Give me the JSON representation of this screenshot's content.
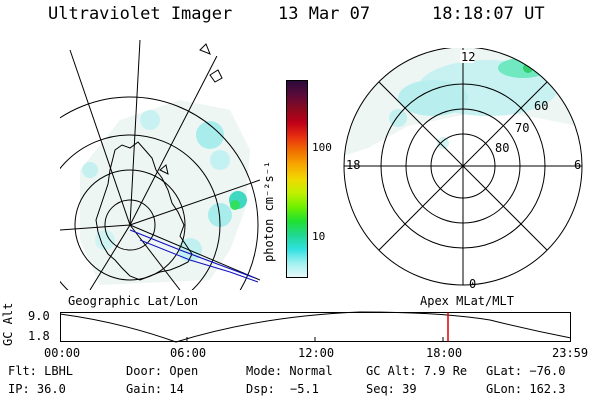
{
  "header": {
    "instrument": "Ultraviolet Imager",
    "date": "13 Mar 07",
    "time": "18:18:07 UT"
  },
  "colorbar": {
    "unit_label": "photon cm⁻²s⁻¹",
    "ticks": [
      "100",
      "10"
    ],
    "colors": [
      "#2a0a3a",
      "#5a0a3a",
      "#8a0a20",
      "#c00018",
      "#e83010",
      "#f07000",
      "#f8a800",
      "#f0d800",
      "#c0f000",
      "#70f000",
      "#20e030",
      "#20d890",
      "#30e0e0",
      "#a0f0f0",
      "#e8f8f8"
    ]
  },
  "left_panel": {
    "label": "Geographic Lat/Lon"
  },
  "right_panel": {
    "label": "Apex MLat/MLT",
    "mlt_labels": {
      "top": "12",
      "left": "18",
      "right": "6",
      "bottom": "0"
    },
    "lat_labels": [
      "60",
      "70",
      "80"
    ]
  },
  "altitude_plot": {
    "ylabel": "GC Alt",
    "yticks": [
      "9.0",
      "1.8"
    ],
    "xticks": [
      "00:00",
      "06:00",
      "12:00",
      "18:00",
      "23:59"
    ],
    "current_marker_color": "#e00000"
  },
  "info": {
    "filter": "Flt: LBHL",
    "door": "Door: Open",
    "mode": "Mode: Normal",
    "gc_alt": "GC Alt: 7.9 Re",
    "glat": "GLat: −76.0",
    "ip": "IP: 36.0",
    "gain": "Gain: 14",
    "dsp_label": "Dsp:",
    "dsp_value": "−5.1",
    "seq": "Seq: 39",
    "glon": "GLon: 162.3"
  }
}
